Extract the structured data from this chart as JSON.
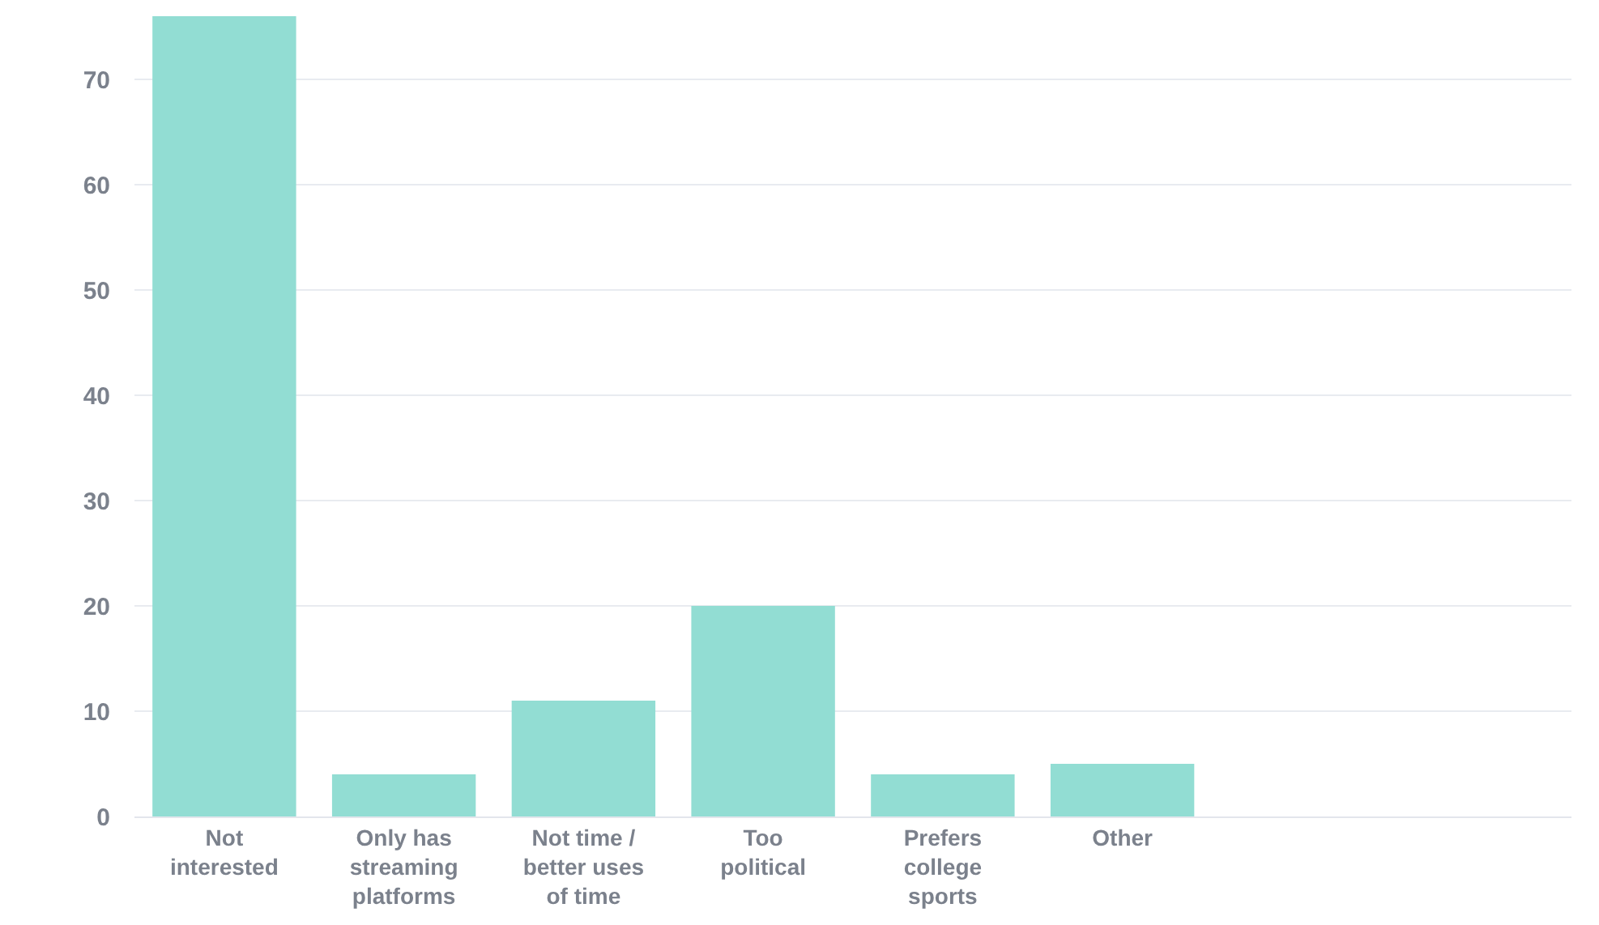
{
  "chart_data": {
    "type": "bar",
    "categories": [
      "Not interested",
      "Only has streaming platforms",
      "Not time / better uses of time",
      "Too political",
      "Prefers college sports",
      "Other",
      null,
      null
    ],
    "values": [
      76,
      4,
      11,
      20,
      4,
      5,
      null,
      null
    ],
    "color": "#92ddd3",
    "ylim": [
      0,
      76
    ],
    "yticks": [
      0,
      10,
      20,
      30,
      40,
      50,
      60,
      70
    ],
    "grid": "y"
  }
}
